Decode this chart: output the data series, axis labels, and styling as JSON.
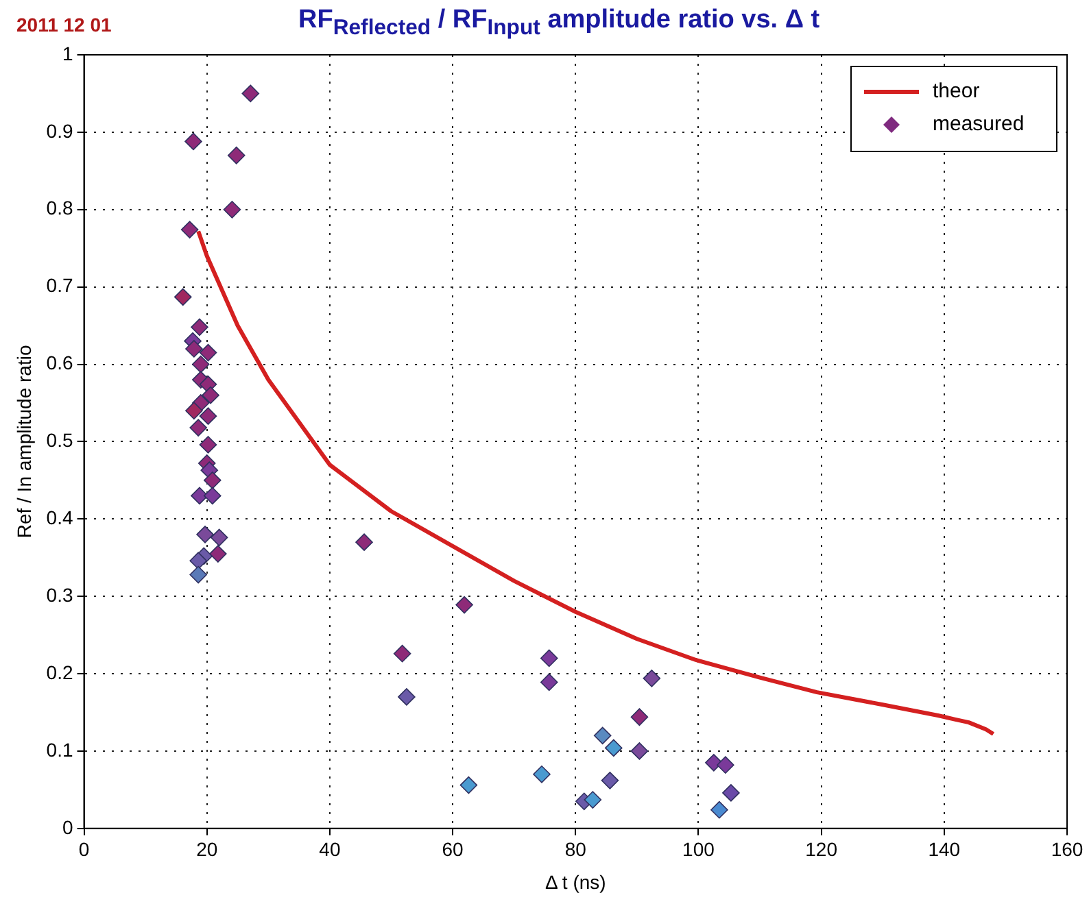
{
  "chart_data": {
    "type": "scatter",
    "title": "RF$_{Reflected}$ / RF$_{Input}$  amplitude ratio vs.  Δ t",
    "annotations": [
      "2011 12 01"
    ],
    "xlabel": "Δ t (ns)",
    "ylabel": "Ref / In amplitude ratio",
    "xlim": [
      0,
      160
    ],
    "xticks": [
      0,
      20,
      40,
      60,
      80,
      100,
      120,
      140,
      160
    ],
    "ylim": [
      0,
      1
    ],
    "yticks": [
      0,
      0.1,
      0.2,
      0.3,
      0.4,
      0.5,
      0.6,
      0.7,
      0.8,
      0.9,
      1
    ],
    "grid": true,
    "legend": "top right",
    "series": [
      {
        "name": "theor",
        "type": "line",
        "color": "#d42020",
        "marker": "none",
        "line_style": "solid",
        "x": [
          18.6,
          20,
          25,
          30,
          40,
          50,
          60,
          70,
          80,
          90,
          99.5,
          110,
          119.3,
          130,
          139,
          141.7,
          144,
          146.8,
          148
        ],
        "values": [
          0.772,
          0.74,
          0.65,
          0.58,
          0.47,
          0.41,
          0.365,
          0.32,
          0.28,
          0.245,
          0.218,
          0.195,
          0.176,
          0.16,
          0.146,
          0.141,
          0.137,
          0.128,
          0.122
        ]
      },
      {
        "name": "measured",
        "type": "scatter",
        "color": "#7f2a7f",
        "marker": "diamond",
        "x": [
          27.1,
          24.8,
          24.1,
          17.8,
          17.2,
          16.1,
          18.8,
          17.7,
          17.9,
          20.2,
          19.0,
          19.0,
          20.2,
          20.6,
          19.0,
          17.9,
          20.2,
          18.6,
          20.2,
          20.0,
          20.4,
          20.9,
          18.8,
          20.9,
          19.7,
          22.0,
          21.8,
          19.5,
          18.6,
          18.6,
          45.6,
          61.9,
          51.8,
          75.7,
          75.7,
          92.4,
          52.5,
          90.4,
          84.4,
          86.2,
          90.4,
          62.6,
          74.5,
          85.6,
          81.4,
          82.8,
          102.5,
          104.4,
          105.3,
          103.4
        ],
        "values": [
          0.95,
          0.87,
          0.8,
          0.888,
          0.774,
          0.687,
          0.648,
          0.63,
          0.62,
          0.615,
          0.6,
          0.58,
          0.574,
          0.56,
          0.55,
          0.54,
          0.533,
          0.518,
          0.496,
          0.472,
          0.463,
          0.45,
          0.43,
          0.43,
          0.38,
          0.376,
          0.355,
          0.352,
          0.346,
          0.328,
          0.37,
          0.289,
          0.226,
          0.22,
          0.189,
          0.194,
          0.17,
          0.144,
          0.12,
          0.104,
          0.1,
          0.056,
          0.07,
          0.062,
          0.035,
          0.037,
          0.085,
          0.082,
          0.046,
          0.024
        ],
        "colors": [
          "#8e2a78",
          "#8e2a78",
          "#8e2a78",
          "#8e2a78",
          "#8e2a78",
          "#a0285f",
          "#8e2a78",
          "#7a3a9a",
          "#8e2a78",
          "#8e2a78",
          "#8e2a78",
          "#8e2a78",
          "#8e2a78",
          "#8e2a78",
          "#8e2a78",
          "#a0285f",
          "#8e2a78",
          "#8e2a78",
          "#8e2a78",
          "#8e2a78",
          "#7a3a9a",
          "#8e2a78",
          "#7a3a9a",
          "#7a3a9a",
          "#7a4a9a",
          "#7a4a9a",
          "#8e2a78",
          "#6a5aa8",
          "#6a5aa8",
          "#5a7ab8",
          "#8e2a78",
          "#8e2a78",
          "#8e2a78",
          "#7a3a9a",
          "#7a3a9a",
          "#7a4a9a",
          "#6a5aa8",
          "#8e2a78",
          "#5a8ac0",
          "#4a9ad0",
          "#7a4a9a",
          "#4a9ad0",
          "#4a9ad0",
          "#6a5aa8",
          "#6a5aa8",
          "#4a9ad0",
          "#7a3a9a",
          "#7a3a9a",
          "#6a4aa8",
          "#4a8ad0"
        ]
      }
    ]
  }
}
